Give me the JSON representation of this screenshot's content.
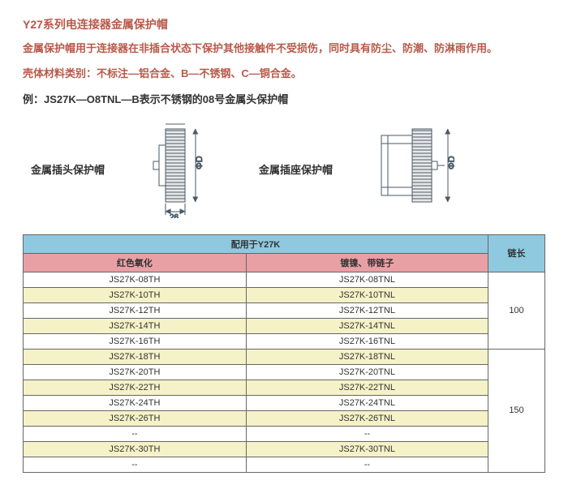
{
  "title": "Y27系列电连接器金属保护帽",
  "desc1": "金属保护帽用于连接器在非插合状态下保护其他接触件不受损伤，同时具有防尘、防潮、防淋雨作用。",
  "desc2": "壳体材料类别：不标注—铝合金、B—不锈钢、C—铜合金。",
  "example": "例：JS27K—O8TNL—B表示不锈钢的08号金属头保护帽",
  "diagram": {
    "left_label": "金属插头保护帽",
    "right_label": "金属插座保护帽",
    "dim_width": "26",
    "dim_dia": "ΦD"
  },
  "table": {
    "header_main": "配用于Y27K",
    "header_chain": "链长",
    "sub_red": "红色氧化",
    "sub_plated": "镀镍、带链子",
    "groups": [
      {
        "chain": "100",
        "rows": [
          {
            "a": "JS27K-08TH",
            "b": "JS27K-08TNL",
            "alt": false
          },
          {
            "a": "JS27K-10TH",
            "b": "JS27K-10TNL",
            "alt": true
          },
          {
            "a": "JS27K-12TH",
            "b": "JS27K-12TNL",
            "alt": false
          },
          {
            "a": "JS27K-14TH",
            "b": "JS27K-14TNL",
            "alt": true
          },
          {
            "a": "JS27K-16TH",
            "b": "JS27K-16TNL",
            "alt": false
          }
        ]
      },
      {
        "chain": "150",
        "rows": [
          {
            "a": "JS27K-18TH",
            "b": "JS27K-18TNL",
            "alt": true
          },
          {
            "a": "JS27K-20TH",
            "b": "JS27K-20TNL",
            "alt": false
          },
          {
            "a": "JS27K-22TH",
            "b": "JS27K-22TNL",
            "alt": true
          },
          {
            "a": "JS27K-24TH",
            "b": "JS27K-24TNL",
            "alt": false
          },
          {
            "a": "JS27K-26TH",
            "b": "JS27K-26TNL",
            "alt": true
          },
          {
            "a": "--",
            "b": "--",
            "alt": false
          },
          {
            "a": "JS27K-30TH",
            "b": "JS27K-30TNL",
            "alt": true
          },
          {
            "a": "--",
            "b": "--",
            "alt": false
          }
        ]
      }
    ],
    "colors": {
      "header_bg": "#8fc9e0",
      "sub_bg": "#e8a0a5",
      "alt_bg": "#f5f2c7",
      "border": "#666666"
    }
  }
}
